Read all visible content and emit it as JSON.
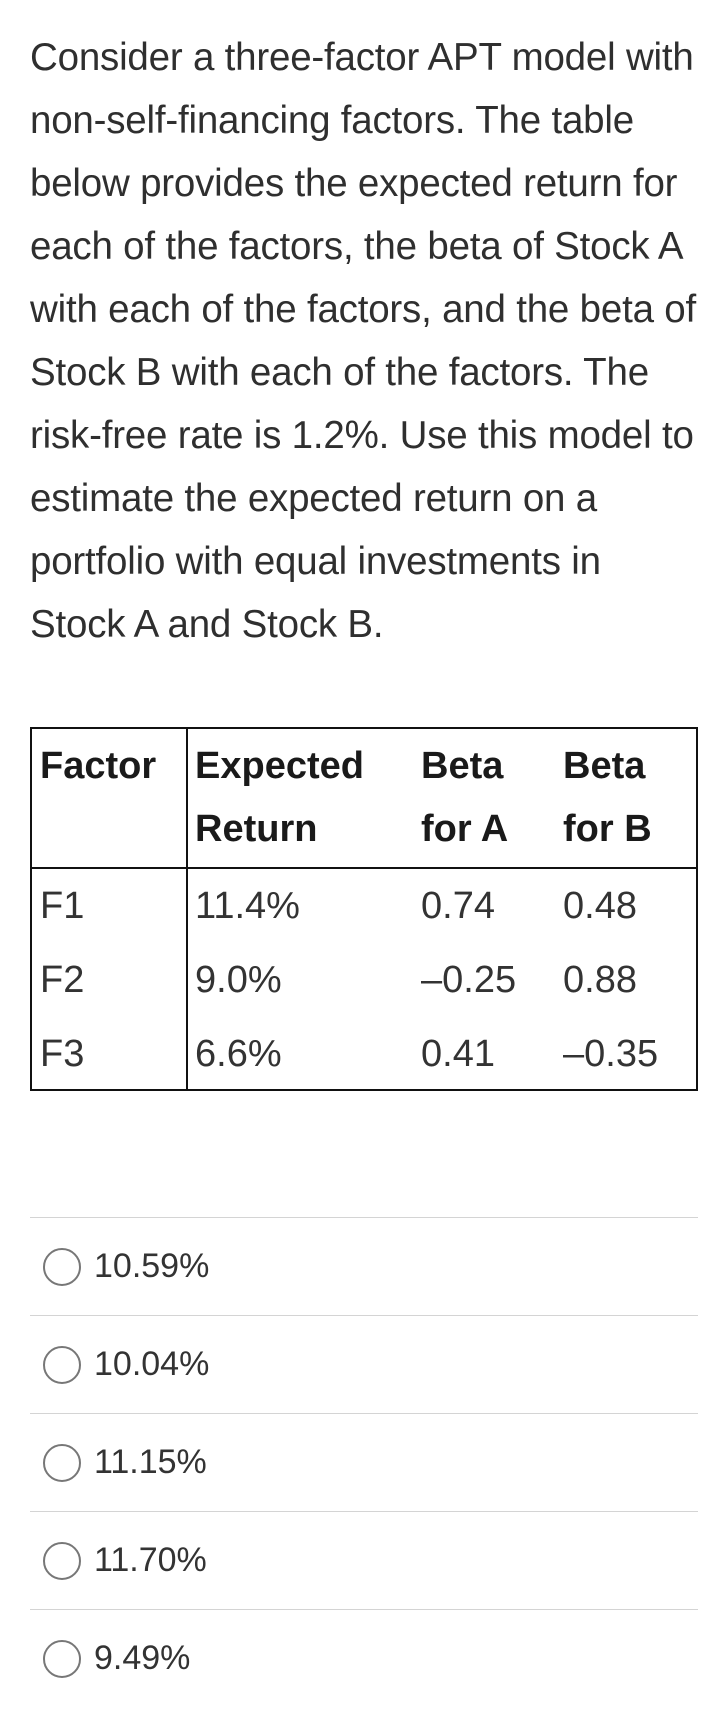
{
  "question": {
    "text": "Consider a three-factor APT model with non-self-financing factors. The table below provides the expected return for each of the factors, the beta of Stock A with each of the factors, and the beta of Stock B with each of the factors. The risk-free rate is 1.2%. Use this model to estimate the expected return on a portfolio with equal investments in Stock A and Stock B."
  },
  "table": {
    "headers": {
      "factor": "Factor",
      "expected_return_line1": "Expected",
      "expected_return_line2": "Return",
      "beta_a_line1": "Beta",
      "beta_a_line2": "for A",
      "beta_b_line1": "Beta",
      "beta_b_line2": "for B"
    },
    "rows": [
      {
        "factor": "F1",
        "expected_return": "11.4%",
        "beta_a": "0.74",
        "beta_b": "0.48"
      },
      {
        "factor": "F2",
        "expected_return": "9.0%",
        "beta_a": "–0.25",
        "beta_b": "0.88"
      },
      {
        "factor": "F3",
        "expected_return": "6.6%",
        "beta_a": "0.41",
        "beta_b": "–0.35"
      }
    ]
  },
  "options": [
    {
      "label": "10.59%",
      "selected": false
    },
    {
      "label": "10.04%",
      "selected": false
    },
    {
      "label": "11.15%",
      "selected": false
    },
    {
      "label": "11.70%",
      "selected": false
    },
    {
      "label": "9.49%",
      "selected": false
    }
  ]
}
